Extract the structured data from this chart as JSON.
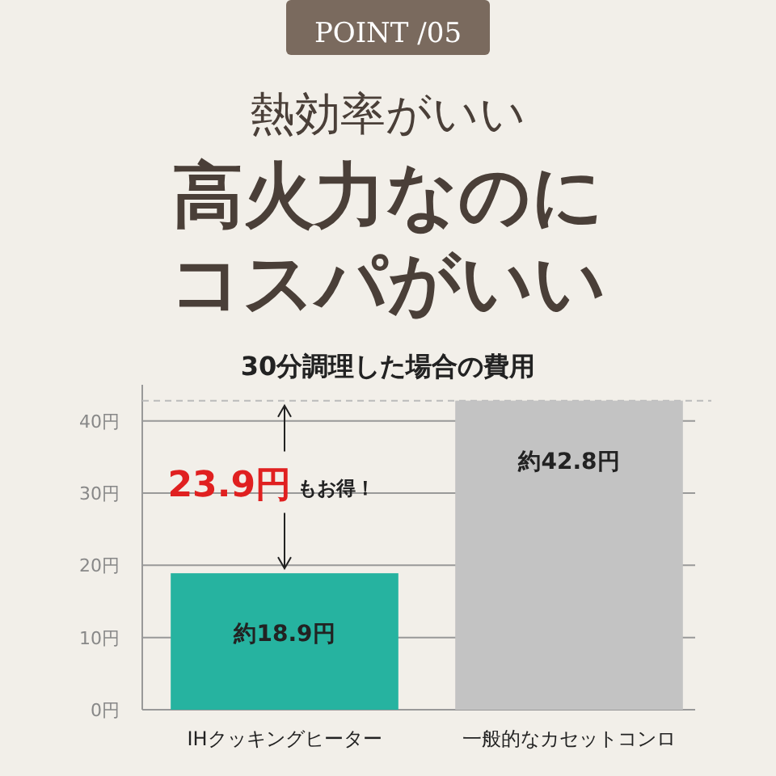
{
  "chart_data": {
    "type": "bar",
    "title": "高火力なのにコスパがいい",
    "subtitle": "30分調理した場合の費用",
    "annotations": [
      "POINT /05",
      "熱効率がいい",
      {
        "text": "23.9円",
        "x": "IHクッキングヒーター",
        "y": 18.9
      },
      {
        "text": "もお得！",
        "x": "IHクッキングヒーター",
        "y": 18.9
      }
    ],
    "categories": [
      "IHクッキングヒーター",
      "一般的なカセットコンロ"
    ],
    "values": [
      18.9,
      42.8
    ],
    "colors": [
      "#26b3a0",
      "#c3c3c3"
    ],
    "value_labels": [
      "約18.9円",
      "約42.8円"
    ],
    "ylim": [
      0,
      45
    ],
    "yticks": [
      {
        "value": 0,
        "label": "0円"
      },
      {
        "value": 10,
        "label": "10円"
      },
      {
        "value": 20,
        "label": "20円"
      },
      {
        "value": 30,
        "label": "30円"
      },
      {
        "value": 40,
        "label": "40円"
      }
    ],
    "grid": "y",
    "ref_lines": [
      {
        "axis": "y",
        "value": 42.8,
        "color": "#bbbbbb",
        "line_style": "dashed"
      }
    ]
  }
}
